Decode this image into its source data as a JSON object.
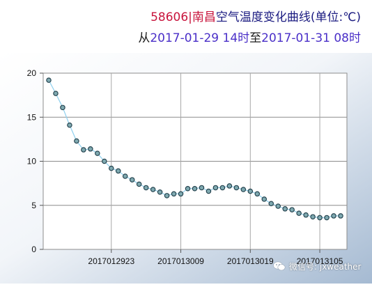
{
  "title": {
    "station_id": "58606",
    "separator": "|",
    "city": "南昌",
    "text": "空气温度变化曲线(单位:℃)",
    "from_label": "从",
    "start": "2017-01-29 14时",
    "to_label": "至",
    "end": "2017-01-31 08时"
  },
  "watermark": {
    "icon": "wechat-icon",
    "text": "微信号: jxweather"
  },
  "colors": {
    "line": "#8fd0ee",
    "marker_fill": "#7fa9b0",
    "marker_stroke": "#1e3c48",
    "plot_bg": "#ffffff",
    "frame_bg_dark": "#a5bad2"
  },
  "chart_data": {
    "type": "line",
    "title": "空气温度变化曲线(单位:℃)",
    "xlabel": "",
    "ylabel": "",
    "x_tick_labels": [
      "2017012923",
      "2017013009",
      "2017013019",
      "2017013105"
    ],
    "y_tick_labels": [
      "0",
      "5",
      "10",
      "15",
      "20"
    ],
    "ylim": [
      0,
      20
    ],
    "grid": true,
    "series": [
      {
        "values": [
          19.2,
          17.7,
          16.1,
          14.1,
          12.3,
          11.3,
          11.4,
          10.9,
          10.0,
          9.2,
          8.9,
          8.3,
          7.9,
          7.4,
          7.0,
          6.8,
          6.5,
          6.1,
          6.3,
          6.3,
          6.9,
          6.9,
          7.0,
          6.6,
          7.0,
          7.0,
          7.2,
          7.0,
          6.8,
          6.6,
          6.3,
          5.7,
          5.2,
          4.9,
          4.6,
          4.5,
          4.1,
          3.9,
          3.7,
          3.6,
          3.6,
          3.8,
          3.8
        ]
      }
    ]
  }
}
